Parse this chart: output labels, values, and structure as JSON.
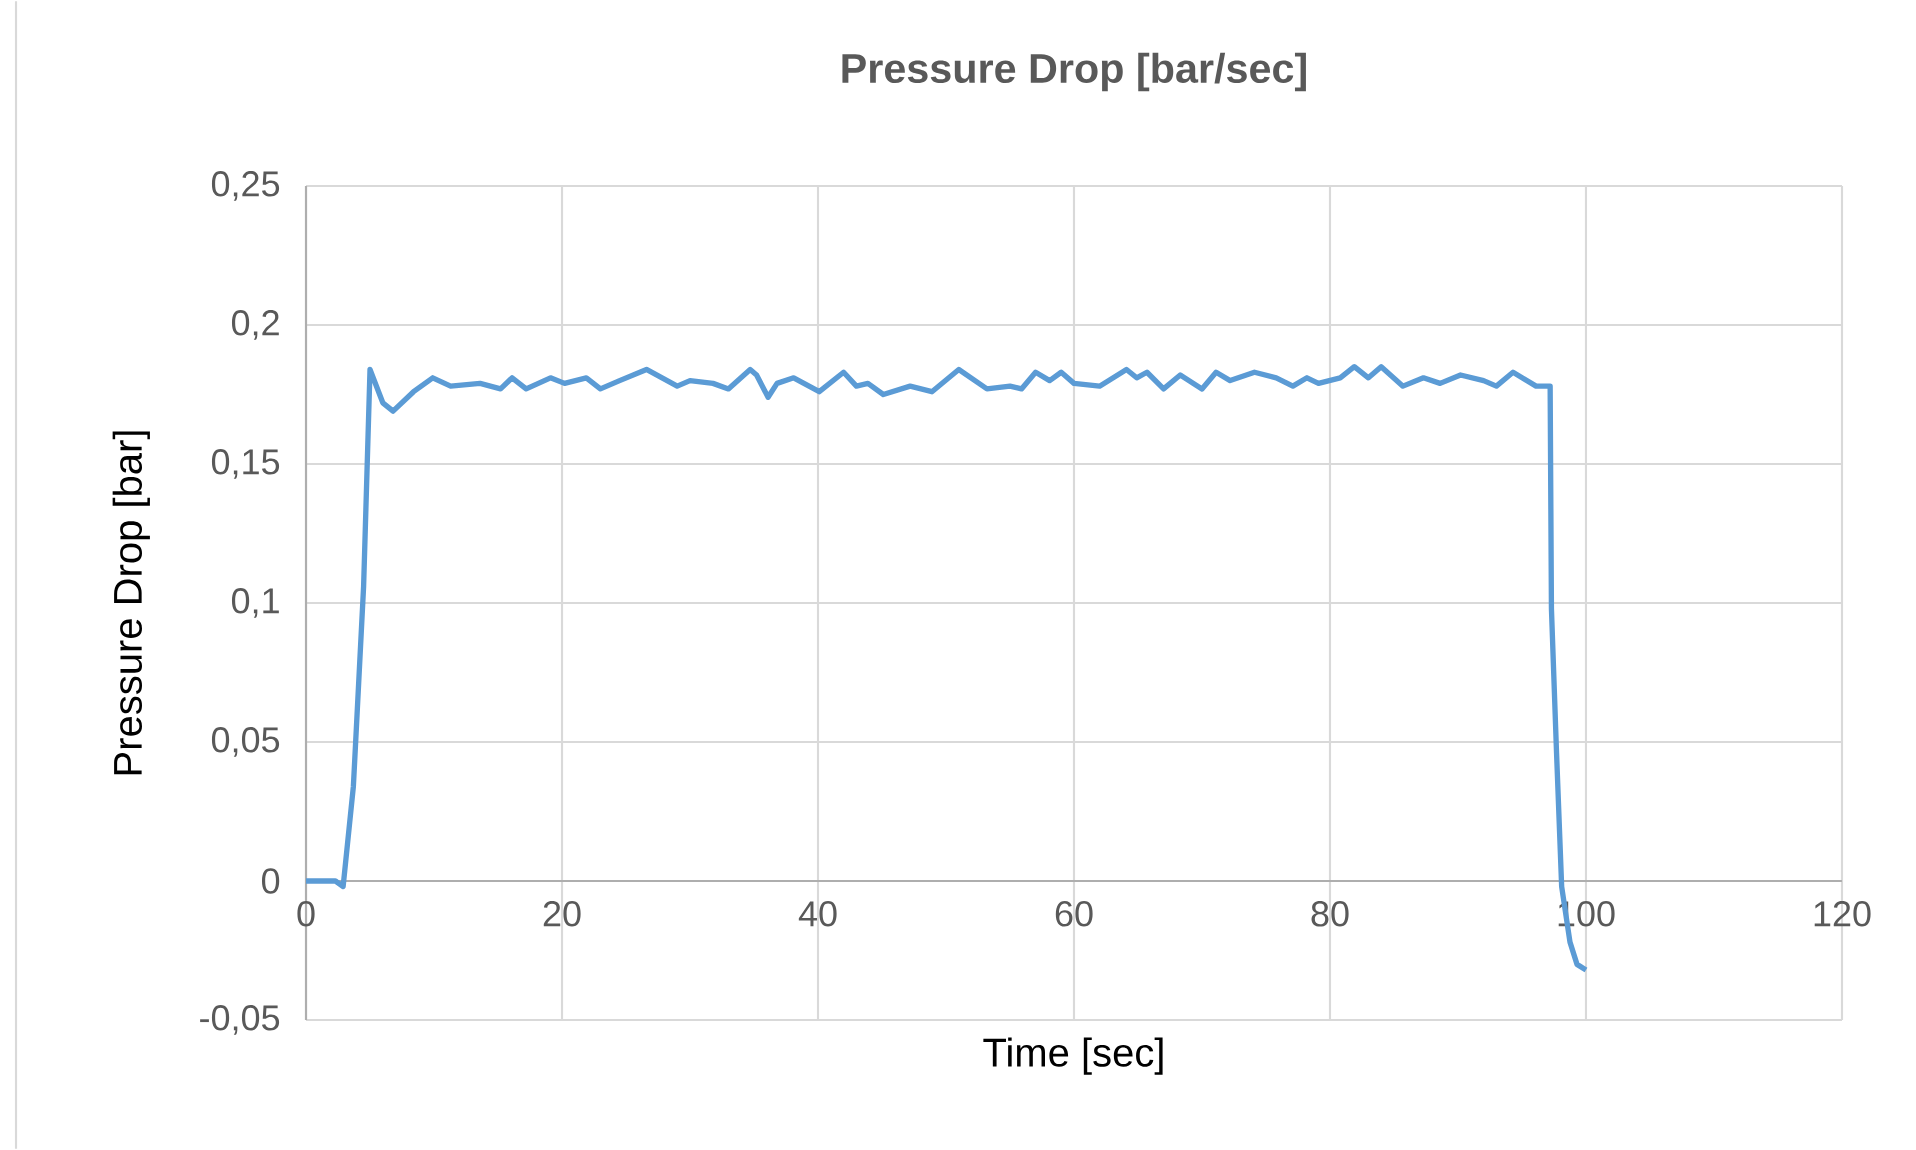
{
  "chart_data": {
    "type": "line",
    "title": "Pressure Drop [bar/sec]",
    "xlabel": "Time [sec]",
    "ylabel": "Pressure Drop [bar]",
    "xlim": [
      0,
      120
    ],
    "xticks": [
      0,
      20,
      40,
      60,
      80,
      100,
      120
    ],
    "ylim": [
      -0.05,
      0.25
    ],
    "yticks": [
      {
        "value": -0.05,
        "label": "-0,05"
      },
      0,
      {
        "value": 0.05,
        "label": "0,05"
      },
      {
        "value": 0.1,
        "label": "0,1"
      },
      {
        "value": 0.15,
        "label": "0,15"
      },
      {
        "value": 0.2,
        "label": "0,2"
      },
      {
        "value": 0.25,
        "label": "0,25"
      }
    ],
    "grid": true,
    "marker": "none",
    "line_style": "solid",
    "series": [
      {
        "color": "#5b9bd5",
        "x": [
          0,
          2.3,
          2.9,
          3.7,
          4.5,
          5.0,
          6.0,
          6.8,
          8.4,
          9.9,
          11.3,
          13.6,
          15.2,
          16.1,
          17.2,
          19.1,
          20.2,
          21.9,
          23.0,
          24.5,
          26.6,
          29.0,
          30.0,
          31.8,
          33.0,
          34.7,
          35.2,
          36.1,
          36.8,
          38.1,
          40.1,
          42.0,
          43.0,
          43.9,
          45.1,
          47.2,
          48.9,
          51.0,
          53.2,
          55.0,
          55.9,
          57.0,
          58.1,
          59.0,
          60.0,
          62.0,
          64.1,
          64.9,
          65.7,
          67.0,
          68.3,
          70.0,
          71.1,
          72.2,
          74.1,
          75.8,
          77.1,
          78.2,
          79.1,
          80.8,
          81.9,
          83.0,
          84.0,
          85.7,
          87.3,
          88.6,
          90.2,
          92.0,
          93.0,
          94.3,
          96.1,
          96.9,
          97.2,
          97.3,
          97.7,
          98.1,
          98.75,
          99.3,
          100.0
        ],
        "values": [
          0,
          0,
          -0.002,
          0.034,
          0.106,
          0.184,
          0.172,
          0.169,
          0.176,
          0.181,
          0.178,
          0.179,
          0.177,
          0.181,
          0.177,
          0.181,
          0.179,
          0.181,
          0.177,
          0.18,
          0.184,
          0.178,
          0.18,
          0.179,
          0.177,
          0.184,
          0.182,
          0.174,
          0.179,
          0.181,
          0.176,
          0.183,
          0.178,
          0.179,
          0.175,
          0.178,
          0.176,
          0.184,
          0.177,
          0.178,
          0.177,
          0.183,
          0.18,
          0.183,
          0.179,
          0.178,
          0.184,
          0.181,
          0.183,
          0.177,
          0.182,
          0.177,
          0.183,
          0.18,
          0.183,
          0.181,
          0.178,
          0.181,
          0.179,
          0.181,
          0.185,
          0.181,
          0.185,
          0.178,
          0.181,
          0.179,
          0.182,
          0.18,
          0.178,
          0.183,
          0.178,
          0.178,
          0.178,
          0.098,
          0.046,
          -0.002,
          -0.022,
          -0.03,
          -0.032
        ]
      }
    ]
  }
}
